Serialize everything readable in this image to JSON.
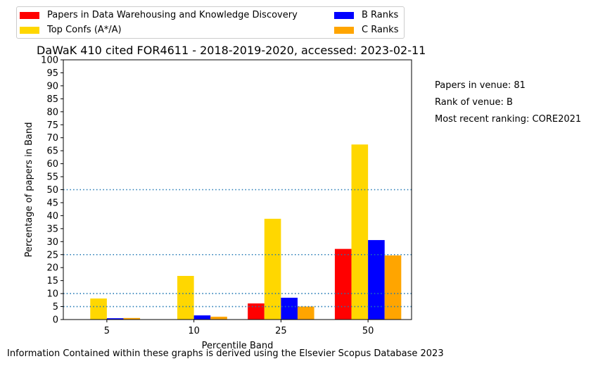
{
  "chart_data": {
    "type": "bar",
    "title": "DaWaK 410 cited FOR4611 - 2018-2019-2020, accessed: 2023-02-11",
    "xlabel": "Percentile Band",
    "ylabel": "Percentage of papers in Band",
    "categories": [
      "5",
      "10",
      "25",
      "50"
    ],
    "ylim": [
      0,
      100
    ],
    "yticks": [
      0,
      5,
      10,
      15,
      20,
      25,
      30,
      35,
      40,
      45,
      50,
      55,
      60,
      65,
      70,
      75,
      80,
      85,
      90,
      95,
      100
    ],
    "reference_lines": [
      5,
      10,
      25,
      50
    ],
    "reference_line_color": "#1f77b4",
    "grid": false,
    "legend_position": "top",
    "series": [
      {
        "name": "Papers in Data Warehousing and Knowledge Discovery",
        "color": "#ff0000",
        "values": [
          0,
          0,
          6.2,
          27.2
        ]
      },
      {
        "name": "Top Confs (A*/A)",
        "color": "#ffd700",
        "values": [
          8.1,
          16.8,
          38.8,
          67.4
        ]
      },
      {
        "name": "B Ranks",
        "color": "#0000ff",
        "values": [
          0.5,
          1.6,
          8.4,
          30.6
        ]
      },
      {
        "name": "C Ranks",
        "color": "#ffa500",
        "values": [
          0.6,
          1.1,
          5.0,
          24.7
        ]
      }
    ]
  },
  "info": {
    "papers_in_venue": "Papers in venue: 81",
    "rank_of_venue": "Rank of venue: B",
    "most_recent_ranking": "Most recent ranking: CORE2021"
  },
  "footer": "Information Contained within these graphs is derived using the Elsevier Scopus Database 2023"
}
